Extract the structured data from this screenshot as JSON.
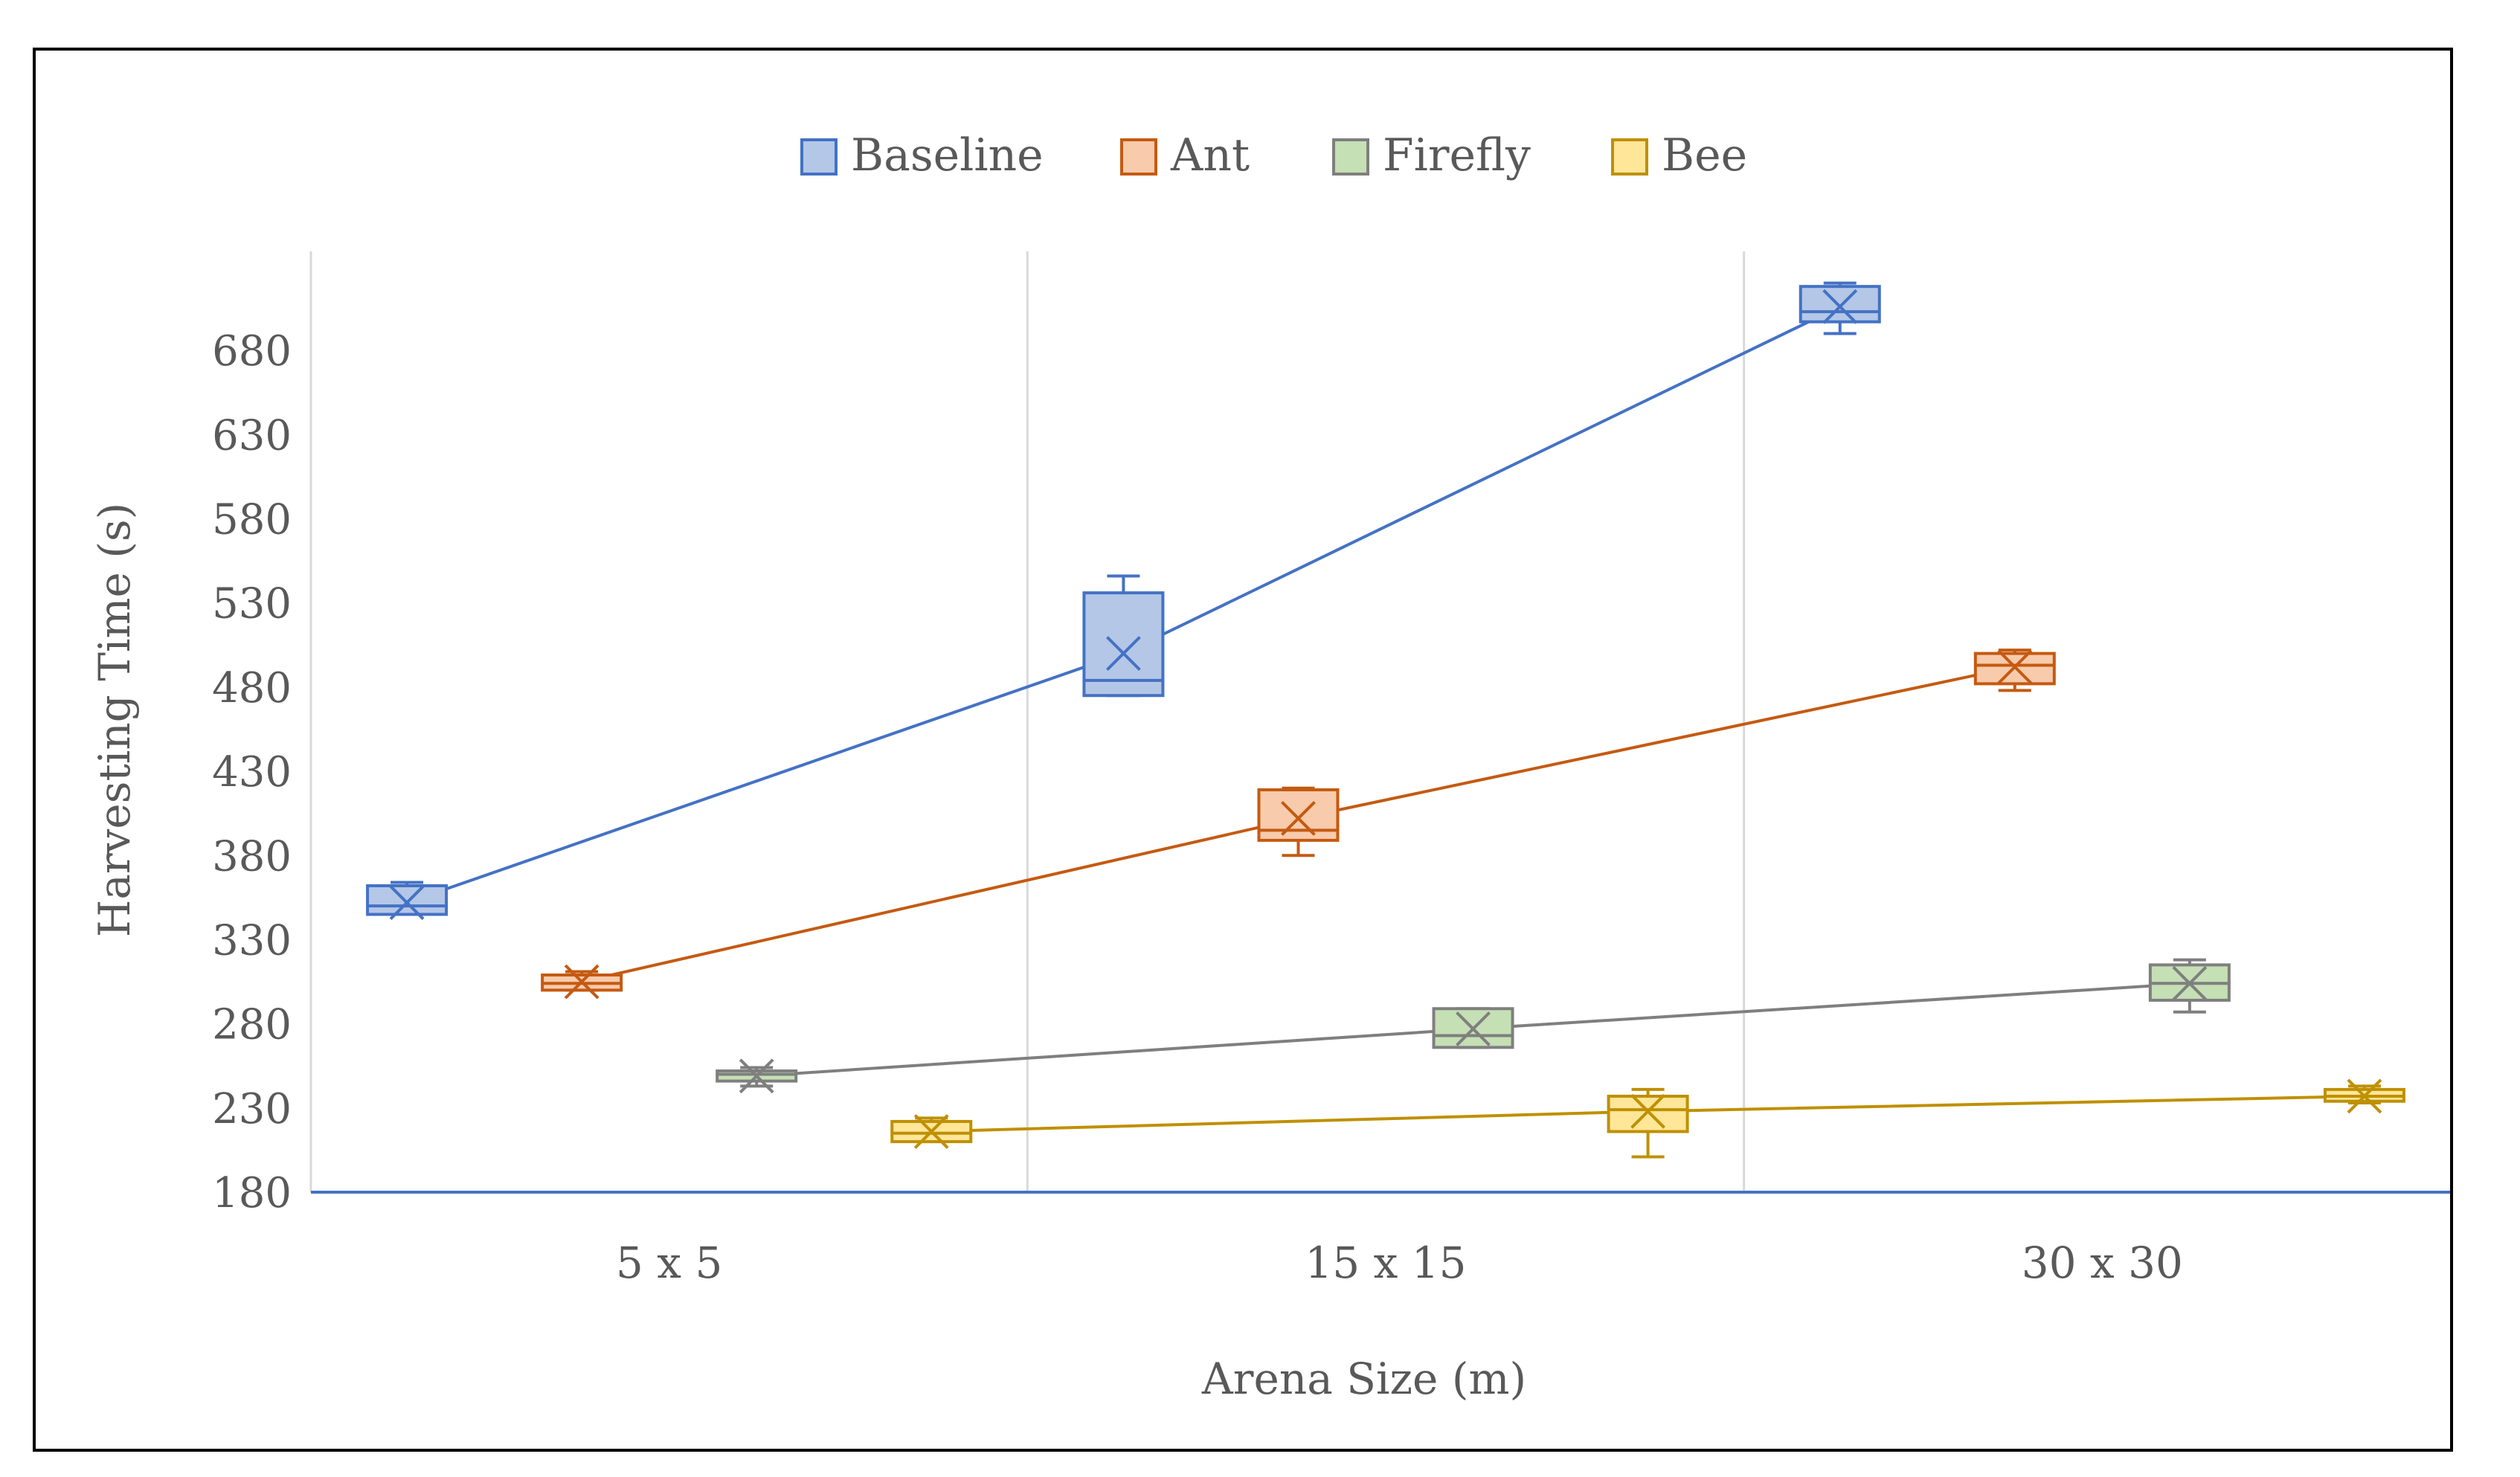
{
  "chart_data": {
    "type": "box",
    "title": "",
    "xlabel": "Arena Size (m)",
    "ylabel": "Harvesting Time (s)",
    "ylim": [
      180,
      730
    ],
    "yticks": [
      180,
      230,
      280,
      330,
      380,
      430,
      480,
      530,
      580,
      630,
      680
    ],
    "categories": [
      "5 x 5",
      "15 x 15",
      "30 x 30"
    ],
    "gridlines": "vertical category separators",
    "legend_position": "top-center",
    "series": [
      {
        "name": "Baseline",
        "stroke": "#4472c4",
        "fill": "#b4c7e7",
        "boxes": [
          {
            "min": 345,
            "q1": 345,
            "median": 350,
            "q3": 362,
            "max": 364,
            "mean": 352
          },
          {
            "min": 475,
            "q1": 475,
            "median": 484,
            "q3": 536,
            "max": 546,
            "mean": 500
          },
          {
            "min": 690,
            "q1": 697,
            "median": 703,
            "q3": 718,
            "max": 720,
            "mean": 706
          }
        ]
      },
      {
        "name": "Ant",
        "stroke": "#c55a11",
        "fill": "#f8cbad",
        "boxes": [
          {
            "min": 300,
            "q1": 300,
            "median": 304,
            "q3": 309,
            "max": 311,
            "mean": 305
          },
          {
            "min": 380,
            "q1": 389,
            "median": 395,
            "q3": 419,
            "max": 420,
            "mean": 402
          },
          {
            "min": 478,
            "q1": 482,
            "median": 493,
            "q3": 500,
            "max": 502,
            "mean": 492
          }
        ]
      },
      {
        "name": "Firefly",
        "stroke": "#7f7f7f",
        "fill": "#c5e0b4",
        "boxes": [
          {
            "min": 243,
            "q1": 246,
            "median": 250,
            "q3": 252,
            "max": 254,
            "mean": 249
          },
          {
            "min": 266,
            "q1": 266,
            "median": 273,
            "q3": 289,
            "max": 289,
            "mean": 277
          },
          {
            "min": 287,
            "q1": 294,
            "median": 304,
            "q3": 315,
            "max": 318,
            "mean": 304
          }
        ]
      },
      {
        "name": "Bee",
        "stroke": "#bf9000",
        "fill": "#ffe699",
        "boxes": [
          {
            "min": 210,
            "q1": 210,
            "median": 215,
            "q3": 222,
            "max": 224,
            "mean": 216
          },
          {
            "min": 201,
            "q1": 216,
            "median": 229,
            "q3": 237,
            "max": 241,
            "mean": 228
          },
          {
            "min": 233,
            "q1": 234,
            "median": 237,
            "q3": 241,
            "max": 243,
            "mean": 237
          }
        ]
      }
    ]
  }
}
